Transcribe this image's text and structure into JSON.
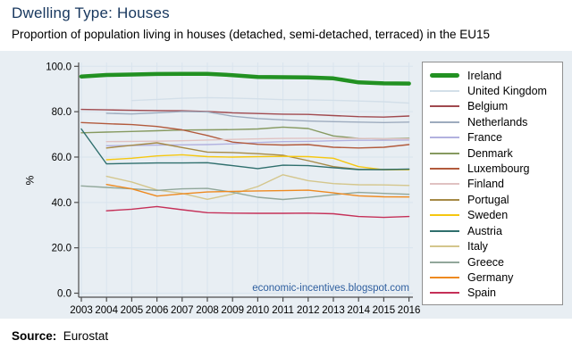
{
  "header": {
    "title": "Dwelling Type: Houses",
    "subtitle": "Proportion of population living in houses (detached, semi-detached, terraced) in the EU15"
  },
  "watermark": "economic-incentives.blogspot.com",
  "footer": {
    "source_label": "Source:",
    "source_value": "Eurostat"
  },
  "colors": {
    "title": "#17375e",
    "subtitle": "#000000",
    "band_background": "#e8eef3",
    "plot_background": "#e8eef3",
    "gridline": "#d9e4ee",
    "axis": "#4d4d4d",
    "tick_label": "#000000",
    "watermark": "#2f5f9f",
    "legend_border": "#8f8f8f"
  },
  "chart_data": {
    "type": "line",
    "title": "Dwelling Type: Houses",
    "subtitle": "Proportion of population living in houses (detached, semi-detached, terraced) in the EU15",
    "xlabel": "",
    "ylabel": "%",
    "ylim": [
      0,
      100
    ],
    "grid": true,
    "legend_position": "right",
    "ytick_values": [
      0,
      20,
      40,
      60,
      80,
      100
    ],
    "ytick_labels": [
      "0.0",
      "20.0",
      "40.0",
      "60.0",
      "80.0",
      "100.0"
    ],
    "x": [
      2003,
      2004,
      2005,
      2006,
      2007,
      2008,
      2009,
      2010,
      2011,
      2012,
      2013,
      2014,
      2015,
      2016
    ],
    "series": [
      {
        "name": "Ireland",
        "color": "#229122",
        "line_width": 4.5,
        "values": [
          95.5,
          96.2,
          96.4,
          96.6,
          96.7,
          96.7,
          96.1,
          95.3,
          95.2,
          95.1,
          94.7,
          92.9,
          92.5,
          92.4
        ]
      },
      {
        "name": "United Kingdom",
        "color": "#d3dfe9",
        "line_width": 1.4,
        "values": [
          null,
          null,
          84.9,
          85.4,
          85.9,
          86.2,
          86.0,
          85.7,
          85.3,
          85.2,
          85.0,
          84.7,
          84.4,
          83.8
        ]
      },
      {
        "name": "Belgium",
        "color": "#a0494e",
        "line_width": 1.4,
        "values": [
          81.0,
          80.8,
          80.6,
          80.5,
          80.4,
          80.1,
          79.5,
          79.2,
          78.9,
          78.8,
          78.3,
          77.8,
          77.6,
          78.1
        ]
      },
      {
        "name": "Netherlands",
        "color": "#9dabbe",
        "line_width": 1.4,
        "values": [
          null,
          79.3,
          79.0,
          79.5,
          80.1,
          79.9,
          78.0,
          77.0,
          76.4,
          75.9,
          75.6,
          75.4,
          75.2,
          75.4
        ]
      },
      {
        "name": "France",
        "color": "#b2b1df",
        "line_width": 1.4,
        "values": [
          null,
          65.0,
          65.1,
          65.3,
          65.4,
          65.5,
          65.8,
          66.4,
          66.8,
          66.9,
          67.2,
          67.4,
          67.4,
          67.5
        ]
      },
      {
        "name": "Denmark",
        "color": "#86995f",
        "line_width": 1.4,
        "values": [
          70.7,
          71.0,
          71.3,
          71.6,
          71.9,
          72.0,
          72.1,
          72.4,
          73.2,
          72.6,
          69.3,
          68.2,
          68.0,
          68.3
        ]
      },
      {
        "name": "Luxembourg",
        "color": "#b25a3c",
        "line_width": 1.4,
        "values": [
          75.2,
          74.7,
          74.3,
          73.5,
          72.0,
          69.5,
          66.6,
          65.6,
          65.3,
          65.5,
          64.3,
          64.0,
          64.3,
          65.5
        ]
      },
      {
        "name": "Finland",
        "color": "#e0c2c2",
        "line_width": 1.4,
        "values": [
          null,
          66.8,
          66.9,
          67.0,
          67.2,
          67.5,
          67.8,
          68.0,
          68.2,
          68.3,
          68.3,
          68.2,
          68.0,
          68.0
        ]
      },
      {
        "name": "Portugal",
        "color": "#a68a46",
        "line_width": 1.4,
        "values": [
          null,
          64.0,
          65.2,
          66.3,
          64.2,
          62.2,
          62.0,
          61.5,
          60.8,
          58.4,
          55.8,
          54.6,
          54.5,
          54.6
        ]
      },
      {
        "name": "Sweden",
        "color": "#f5c710",
        "line_width": 1.4,
        "values": [
          null,
          58.8,
          59.5,
          60.5,
          61.0,
          60.2,
          60.0,
          60.2,
          60.3,
          60.2,
          59.5,
          55.8,
          54.4,
          54.4
        ]
      },
      {
        "name": "Austria",
        "color": "#2f6f6d",
        "line_width": 1.4,
        "values": [
          72.4,
          57.0,
          57.2,
          57.4,
          57.4,
          57.5,
          56.2,
          54.9,
          56.4,
          56.2,
          55.3,
          54.5,
          54.5,
          54.7
        ]
      },
      {
        "name": "Italy",
        "color": "#d4c68c",
        "line_width": 1.4,
        "values": [
          null,
          51.5,
          49.0,
          45.5,
          44.0,
          41.4,
          43.7,
          47.0,
          52.2,
          49.6,
          48.3,
          47.8,
          47.7,
          47.5
        ]
      },
      {
        "name": "Greece",
        "color": "#91a79a",
        "line_width": 1.4,
        "values": [
          47.3,
          46.6,
          46.0,
          45.3,
          46.0,
          46.2,
          44.5,
          42.3,
          41.3,
          42.2,
          43.4,
          44.4,
          44.0,
          43.6
        ]
      },
      {
        "name": "Germany",
        "color": "#ee8a20",
        "line_width": 1.4,
        "values": [
          null,
          47.9,
          46.0,
          42.8,
          43.8,
          44.6,
          44.9,
          45.1,
          45.2,
          45.4,
          44.2,
          42.9,
          42.5,
          42.4
        ]
      },
      {
        "name": "Spain",
        "color": "#c53058",
        "line_width": 1.4,
        "values": [
          null,
          36.3,
          37.0,
          38.2,
          36.8,
          35.5,
          35.3,
          35.2,
          35.2,
          35.3,
          35.0,
          33.8,
          33.4,
          33.8
        ]
      }
    ]
  }
}
